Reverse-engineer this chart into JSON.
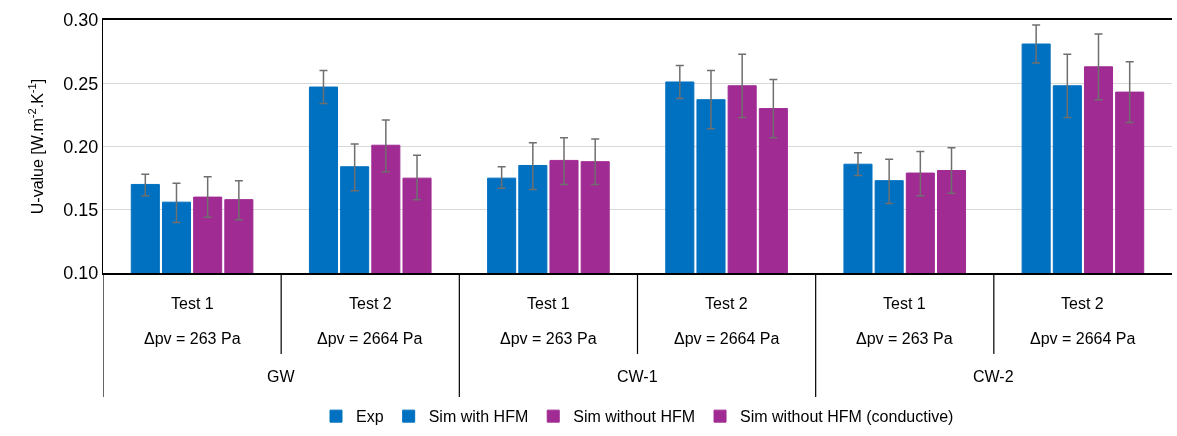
{
  "chart_data": {
    "type": "bar",
    "categories": [
      "Test 1\nΔpv = 263 Pa",
      "Test 2\nΔpv = 2664 Pa",
      "Test 1\nΔpv = 263 Pa",
      "Test 2\nΔpv = 2664 Pa",
      "Test 1\nΔpv = 263 Pa",
      "Test 2\nΔpv = 2664 Pa"
    ],
    "annotations": [
      "GW",
      "CW-1",
      "CW-2"
    ],
    "ylabel": "U-value [W.m$^{-2}$.K$^{-1}$]",
    "ylim": [
      0.1,
      0.3
    ],
    "yticks": [
      {
        "value": 0.1,
        "label": "0.10"
      },
      {
        "value": 0.15,
        "label": "0.15"
      },
      {
        "value": 0.2,
        "label": "0.20"
      },
      {
        "value": 0.25,
        "label": "0.25"
      },
      {
        "value": 0.3,
        "label": "0.30"
      }
    ],
    "grid": "y",
    "legend": "bottom",
    "series": [
      {
        "name": "Exp",
        "color": "#0070c0",
        "values": [
          0.17,
          0.247,
          0.175,
          0.251,
          0.186,
          0.281
        ],
        "errors": [
          [
            0.161,
            0.178
          ],
          [
            0.234,
            0.26
          ],
          [
            0.167,
            0.184
          ],
          [
            0.238,
            0.264
          ],
          [
            0.177,
            0.195
          ],
          [
            0.266,
            0.296
          ]
        ]
      },
      {
        "name": "Sim with HFM",
        "color": "#0070c0",
        "values": [
          0.156,
          0.184,
          0.185,
          0.237,
          0.173,
          0.248
        ],
        "errors": [
          [
            0.14,
            0.171
          ],
          [
            0.165,
            0.202
          ],
          [
            0.166,
            0.203
          ],
          [
            0.214,
            0.26
          ],
          [
            0.155,
            0.19
          ],
          [
            0.223,
            0.273
          ]
        ]
      },
      {
        "name": "Sim without HFM",
        "color": "#a02b93",
        "values": [
          0.16,
          0.201,
          0.189,
          0.248,
          0.179,
          0.263
        ],
        "errors": [
          [
            0.144,
            0.176
          ],
          [
            0.18,
            0.221
          ],
          [
            0.17,
            0.207
          ],
          [
            0.223,
            0.273
          ],
          [
            0.161,
            0.196
          ],
          [
            0.237,
            0.289
          ]
        ]
      },
      {
        "name": "Sim without HFM (conductive)",
        "color": "#a02b93",
        "values": [
          0.158,
          0.175,
          0.188,
          0.23,
          0.181,
          0.243
        ],
        "errors": [
          [
            0.142,
            0.173
          ],
          [
            0.158,
            0.193
          ],
          [
            0.17,
            0.206
          ],
          [
            0.207,
            0.253
          ],
          [
            0.163,
            0.199
          ],
          [
            0.219,
            0.267
          ]
        ]
      }
    ]
  }
}
